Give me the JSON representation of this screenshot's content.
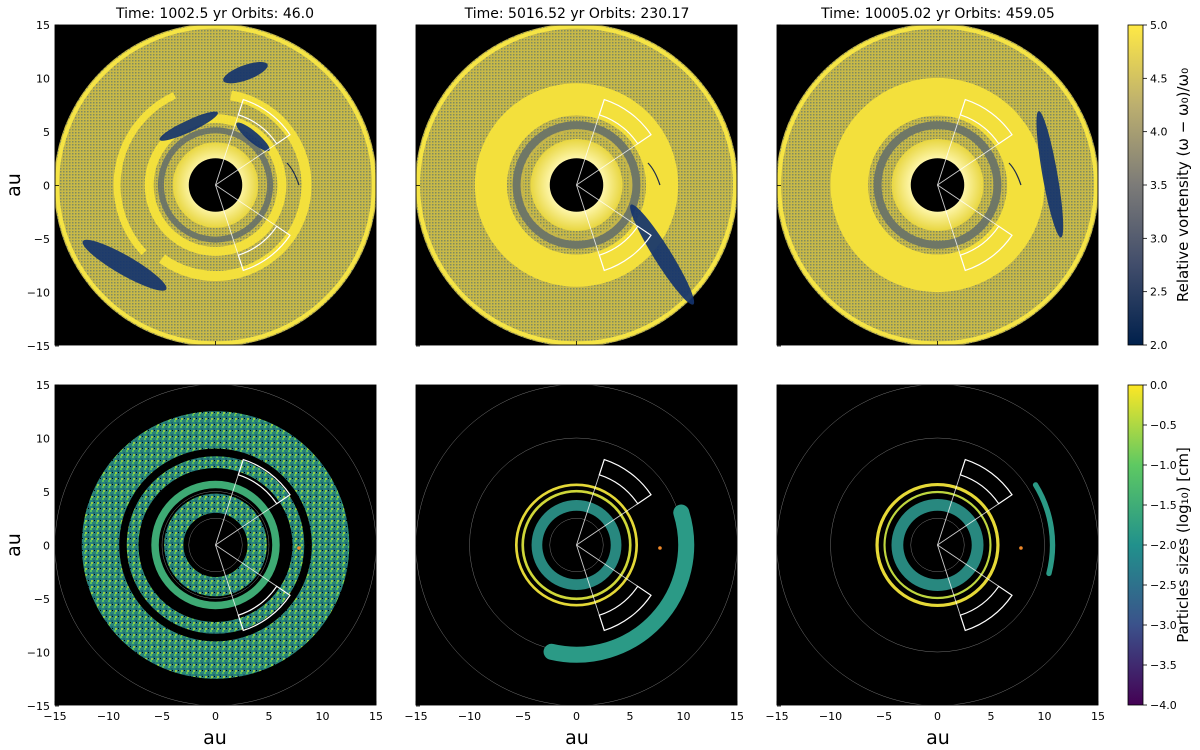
{
  "figure": {
    "titles": [
      "Time: 1002.5 yr  Orbits: 46.0",
      "Time: 5016.52 yr  Orbits: 230.17",
      "Time: 10005.02 yr  Orbits: 459.05"
    ],
    "xlabel": "au",
    "ylabel": "au",
    "ticks": [
      "−15",
      "−10",
      "−5",
      "0",
      "5",
      "10",
      "15"
    ],
    "ytick_labels": [
      "15",
      "10",
      "5",
      "0",
      "−5",
      "−10",
      "−15"
    ],
    "colorbar_top": {
      "label": "Relative vortensity (ω − ω₀)/ω₀",
      "ticks": [
        "5.0",
        "4.5",
        "4.0",
        "3.5",
        "3.0",
        "2.5",
        "2.0"
      ],
      "colors": [
        "#00204c",
        "#414d6b",
        "#7c7b78",
        "#bcaf6f",
        "#ffe945"
      ]
    },
    "colorbar_bottom": {
      "label": "Particles sizes (log₁₀) [cm]",
      "ticks": [
        "0.0",
        "−0.5",
        "−1.0",
        "−1.5",
        "−2.0",
        "−2.5",
        "−3.0",
        "−3.5",
        "−4.0"
      ],
      "colors": [
        "#440154",
        "#3b528b",
        "#21918c",
        "#5ec962",
        "#fde725"
      ]
    }
  },
  "chart_data": [
    {
      "type": "heatmap",
      "title": "Time: 1002.5 yr  Orbits: 46.0",
      "xlabel": "",
      "ylabel": "au",
      "xlim": [
        -15,
        15
      ],
      "ylim": [
        -15,
        15
      ],
      "colorbar": "Relative vortensity (ω − ω₀)/ω₀",
      "clim": [
        2.0,
        5.0
      ]
    },
    {
      "type": "heatmap",
      "title": "Time: 5016.52 yr  Orbits: 230.17",
      "xlim": [
        -15,
        15
      ],
      "ylim": [
        -15,
        15
      ],
      "clim": [
        2.0,
        5.0
      ]
    },
    {
      "type": "heatmap",
      "title": "Time: 10005.02 yr  Orbits: 459.05",
      "xlim": [
        -15,
        15
      ],
      "ylim": [
        -15,
        15
      ],
      "clim": [
        2.0,
        5.0
      ]
    },
    {
      "type": "scatter",
      "xlabel": "au",
      "ylabel": "au",
      "xlim": [
        -15,
        15
      ],
      "ylim": [
        -15,
        15
      ],
      "colorbar": "Particles sizes (log₁₀) [cm]",
      "clim": [
        -4.0,
        0.0
      ]
    },
    {
      "type": "scatter",
      "xlabel": "au",
      "xlim": [
        -15,
        15
      ],
      "ylim": [
        -15,
        15
      ],
      "clim": [
        -4.0,
        0.0
      ]
    },
    {
      "type": "scatter",
      "xlabel": "au",
      "xlim": [
        -15,
        15
      ],
      "ylim": [
        -15,
        15
      ],
      "clim": [
        -4.0,
        0.0
      ]
    }
  ]
}
